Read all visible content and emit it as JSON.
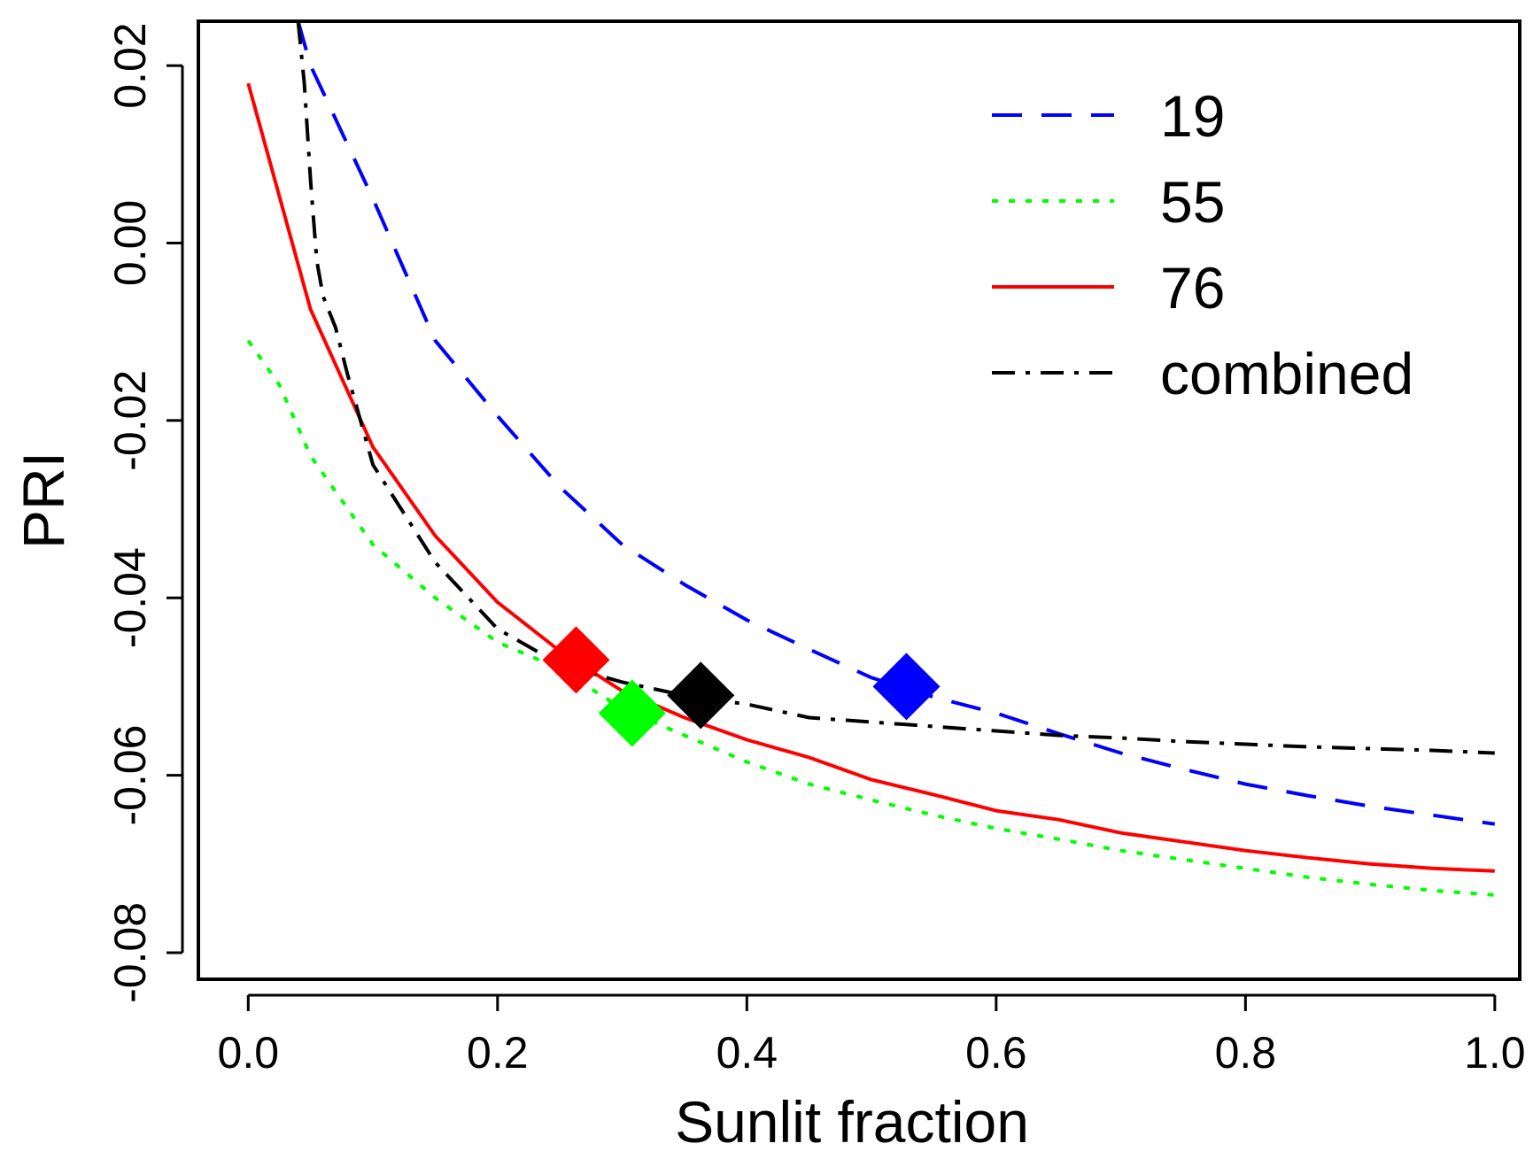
{
  "chart_data": {
    "type": "line",
    "title": "",
    "xlabel": "Sunlit fraction",
    "ylabel": "PRI",
    "xlim": [
      -0.04,
      1.02
    ],
    "ylim": [
      -0.083,
      0.025
    ],
    "xticks": [
      0.0,
      0.2,
      0.4,
      0.6,
      0.8,
      1.0
    ],
    "xtick_labels": [
      "0.0",
      "0.2",
      "0.4",
      "0.6",
      "0.8",
      "1.0"
    ],
    "yticks": [
      -0.08,
      -0.06,
      -0.04,
      -0.02,
      0.0,
      0.02
    ],
    "ytick_labels": [
      "-0.08",
      "-0.06",
      "-0.04",
      "-0.02",
      "0.00",
      "0.02"
    ],
    "grid": false,
    "legend_position": "top-right",
    "series": [
      {
        "name": "19",
        "color": "#0000ff",
        "dash": "dashed",
        "x": [
          0.04,
          0.05,
          0.06,
          0.08,
          0.1,
          0.15,
          0.2,
          0.25,
          0.3,
          0.35,
          0.4,
          0.45,
          0.5,
          0.55,
          0.6,
          0.65,
          0.7,
          0.75,
          0.8,
          0.85,
          0.9,
          0.95,
          1.0
        ],
        "y": [
          0.025,
          0.02,
          0.017,
          0.011,
          0.005,
          -0.011,
          -0.0195,
          -0.0275,
          -0.034,
          -0.0385,
          -0.0425,
          -0.0458,
          -0.049,
          -0.0512,
          -0.053,
          -0.0553,
          -0.0575,
          -0.0593,
          -0.061,
          -0.0623,
          -0.0635,
          -0.0645,
          -0.0655
        ]
      },
      {
        "name": "55",
        "color": "#00ff00",
        "dash": "dotted",
        "x": [
          0.0,
          0.025,
          0.05,
          0.1,
          0.15,
          0.2,
          0.25,
          0.3,
          0.35,
          0.4,
          0.45,
          0.5,
          0.55,
          0.6,
          0.65,
          0.7,
          0.75,
          0.8,
          0.85,
          0.9,
          0.95,
          1.0
        ],
        "y": [
          -0.011,
          -0.016,
          -0.024,
          -0.034,
          -0.04,
          -0.045,
          -0.048,
          -0.0525,
          -0.0555,
          -0.0585,
          -0.061,
          -0.0628,
          -0.0645,
          -0.066,
          -0.0672,
          -0.0685,
          -0.0695,
          -0.0705,
          -0.0715,
          -0.0723,
          -0.073,
          -0.0735
        ]
      },
      {
        "name": "76",
        "color": "#ff0000",
        "dash": "solid",
        "x": [
          0.0,
          0.05,
          0.1,
          0.15,
          0.2,
          0.25,
          0.3,
          0.35,
          0.4,
          0.45,
          0.5,
          0.55,
          0.6,
          0.65,
          0.7,
          0.75,
          0.8,
          0.85,
          0.9,
          0.95,
          1.0
        ],
        "y": [
          0.018,
          -0.0075,
          -0.023,
          -0.033,
          -0.0405,
          -0.046,
          -0.0505,
          -0.0535,
          -0.056,
          -0.058,
          -0.0605,
          -0.0622,
          -0.064,
          -0.065,
          -0.0665,
          -0.0675,
          -0.0685,
          -0.0693,
          -0.07,
          -0.0705,
          -0.0708
        ]
      },
      {
        "name": "combined",
        "color": "#000000",
        "dash": "dashdot",
        "x": [
          0.04,
          0.045,
          0.05,
          0.055,
          0.06,
          0.07,
          0.08,
          0.09,
          0.1,
          0.15,
          0.2,
          0.25,
          0.3,
          0.35,
          0.4,
          0.45,
          0.5,
          0.55,
          0.6,
          0.65,
          0.7,
          0.75,
          0.8,
          0.85,
          0.9,
          0.95,
          1.0
        ],
        "y": [
          0.025,
          0.018,
          0.007,
          -0.002,
          -0.006,
          -0.0095,
          -0.015,
          -0.02,
          -0.025,
          -0.036,
          -0.0435,
          -0.0475,
          -0.0495,
          -0.051,
          -0.052,
          -0.0535,
          -0.054,
          -0.0545,
          -0.055,
          -0.0555,
          -0.0558,
          -0.0562,
          -0.0565,
          -0.0568,
          -0.057,
          -0.0572,
          -0.0575
        ]
      }
    ],
    "markers": [
      {
        "series": "19",
        "shape": "diamond",
        "color": "#0000ff",
        "x": 0.528,
        "y": -0.05
      },
      {
        "series": "76",
        "shape": "diamond",
        "color": "#ff0000",
        "x": 0.263,
        "y": -0.047
      },
      {
        "series": "55",
        "shape": "diamond",
        "color": "#00ff00",
        "x": 0.308,
        "y": -0.053
      },
      {
        "series": "combined",
        "shape": "diamond",
        "color": "#000000",
        "x": 0.363,
        "y": -0.051
      }
    ]
  }
}
